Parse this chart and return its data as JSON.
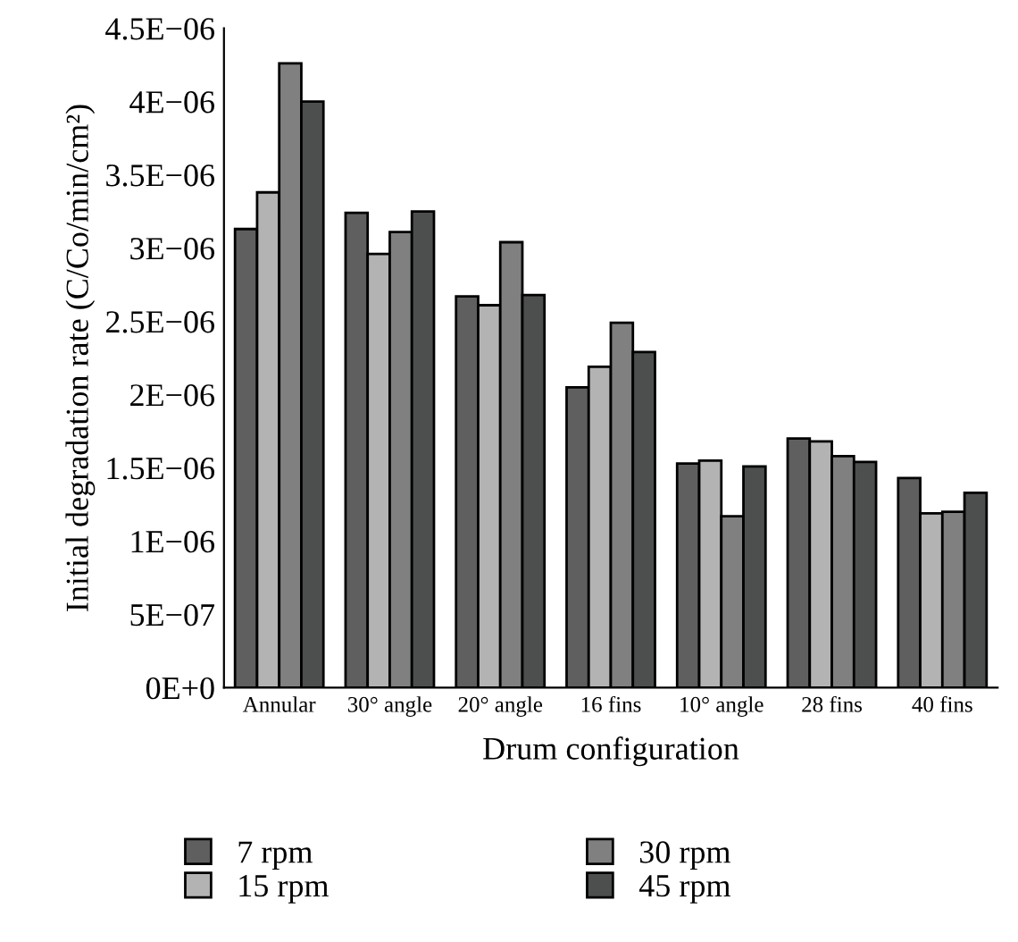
{
  "chart_data": {
    "type": "bar",
    "xlabel": "Drum configuration",
    "ylabel": "Initial degradation rate (C/Co/min/cm²)",
    "categories": [
      "Annular",
      "30° angle",
      "20° angle",
      "16 fins",
      "10° angle",
      "28 fins",
      "40 fins"
    ],
    "series": [
      {
        "name": "7 rpm",
        "color": "#5f5f5f",
        "values": [
          3.13e-06,
          3.24e-06,
          2.67e-06,
          2.05e-06,
          1.53e-06,
          1.7e-06,
          1.43e-06
        ]
      },
      {
        "name": "15 rpm",
        "color": "#b3b3b3",
        "values": [
          3.38e-06,
          2.96e-06,
          2.61e-06,
          2.19e-06,
          1.55e-06,
          1.68e-06,
          1.19e-06
        ]
      },
      {
        "name": "30 rpm",
        "color": "#808080",
        "values": [
          4.26e-06,
          3.11e-06,
          3.04e-06,
          2.49e-06,
          1.17e-06,
          1.58e-06,
          1.2e-06
        ]
      },
      {
        "name": "45 rpm",
        "color": "#4d4f4f",
        "values": [
          4e-06,
          3.25e-06,
          2.68e-06,
          2.29e-06,
          1.51e-06,
          1.54e-06,
          1.33e-06
        ]
      }
    ],
    "ylim": [
      0,
      4.5e-06
    ],
    "yticks": [
      {
        "value": 0,
        "label": "0E+0"
      },
      {
        "value": 5e-07,
        "label": "5E−07"
      },
      {
        "value": 1e-06,
        "label": "1E−06"
      },
      {
        "value": 1.5e-06,
        "label": "1.5E−06"
      },
      {
        "value": 2e-06,
        "label": "2E−06"
      },
      {
        "value": 2.5e-06,
        "label": "2.5E−06"
      },
      {
        "value": 3e-06,
        "label": "3E−06"
      },
      {
        "value": 3.5e-06,
        "label": "3.5E−06"
      },
      {
        "value": 4e-06,
        "label": "4E−06"
      },
      {
        "value": 4.5e-06,
        "label": "4.5E−06"
      }
    ],
    "grid": false,
    "legend": "bottom"
  }
}
